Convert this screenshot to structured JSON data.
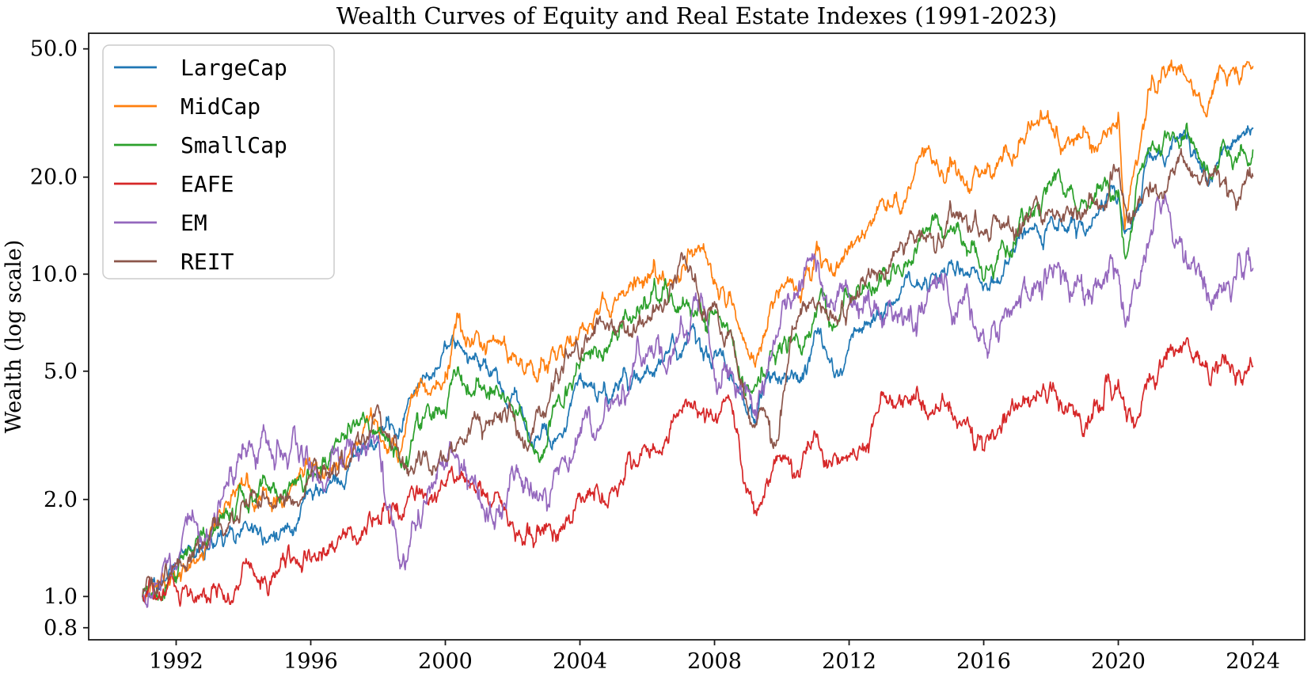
{
  "title": "Wealth Curves of Equity and Real Estate Indexes (1991-2023)",
  "y_axis": {
    "label": "Wealth (log scale)",
    "scale": "log",
    "tick_labels": [
      "50.0",
      "20.0",
      "10.0",
      "5.0",
      "2.0",
      "1.0",
      "0.8"
    ],
    "tick_values": [
      50,
      20,
      10,
      5,
      2,
      1,
      0.8
    ]
  },
  "x_axis": {
    "tick_labels": [
      "1992",
      "1996",
      "2000",
      "2004",
      "2008",
      "2012",
      "2016",
      "2020",
      "2024"
    ],
    "tick_values": [
      1992,
      1996,
      2000,
      2004,
      2008,
      2012,
      2016,
      2020,
      2024
    ]
  },
  "legend": {
    "entries": [
      {
        "label": "LargeCap",
        "color": "#1f77b4"
      },
      {
        "label": "MidCap",
        "color": "#ff7f0e"
      },
      {
        "label": "SmallCap",
        "color": "#2ca02c"
      },
      {
        "label": "EAFE",
        "color": "#d62728"
      },
      {
        "label": "EM",
        "color": "#9467bd"
      },
      {
        "label": "REIT",
        "color": "#8c564b"
      }
    ]
  },
  "chart_data": {
    "type": "line",
    "title": "Wealth Curves of Equity and Real Estate Indexes (1991-2023)",
    "xlabel": "",
    "ylabel": "Wealth (log scale)",
    "x_unit": "year",
    "xlim": [
      1989.4,
      2025.54
    ],
    "ylim": [
      0.734,
      55.9
    ],
    "grid": false,
    "legend_position": "upper left",
    "series": [
      {
        "name": "LargeCap",
        "color": "#1f77b4",
        "points": [
          [
            1991,
            1.0
          ],
          [
            1992,
            1.19
          ],
          [
            1993,
            1.4
          ],
          [
            1994,
            1.49
          ],
          [
            1995,
            1.6
          ],
          [
            1996,
            1.94
          ],
          [
            1997,
            2.38
          ],
          [
            1998,
            3.45
          ],
          [
            1998.7,
            3.3
          ],
          [
            1999,
            4.43
          ],
          [
            2000,
            5.5
          ],
          [
            2000.6,
            5.8
          ],
          [
            2001,
            4.7
          ],
          [
            2002,
            4.27
          ],
          [
            2002.7,
            2.9
          ],
          [
            2003,
            3.2
          ],
          [
            2003.2,
            3.05
          ],
          [
            2004,
            4.56
          ],
          [
            2005,
            4.56
          ],
          [
            2006,
            5.06
          ],
          [
            2007,
            6.16
          ],
          [
            2007.4,
            6.76
          ],
          [
            2008,
            5.87
          ],
          [
            2008.5,
            5.17
          ],
          [
            2009.2,
            3.85
          ],
          [
            2009.6,
            4.7
          ],
          [
            2010.2,
            5.06
          ],
          [
            2010.6,
            4.45
          ],
          [
            2011,
            5.9
          ],
          [
            2011.6,
            5.25
          ],
          [
            2012,
            6.33
          ],
          [
            2013,
            7.46
          ],
          [
            2014,
            9.08
          ],
          [
            2015,
            10.6
          ],
          [
            2016,
            9.5
          ],
          [
            2017,
            11.9
          ],
          [
            2018,
            14.6
          ],
          [
            2019,
            13.3
          ],
          [
            2019.5,
            15.3
          ],
          [
            2020,
            17.4
          ],
          [
            2020.2,
            13.0
          ],
          [
            2021,
            22.5
          ],
          [
            2022,
            26.7
          ],
          [
            2022.75,
            19.4
          ],
          [
            2023,
            22.9
          ],
          [
            2023.5,
            25.2
          ],
          [
            2024,
            28.3
          ]
        ]
      },
      {
        "name": "MidCap",
        "color": "#ff7f0e",
        "points": [
          [
            1991,
            1.0
          ],
          [
            1992,
            1.27
          ],
          [
            1993,
            1.54
          ],
          [
            1994,
            1.98
          ],
          [
            1995,
            1.9
          ],
          [
            1996,
            2.19
          ],
          [
            1997,
            2.64
          ],
          [
            1998,
            3.55
          ],
          [
            1998.7,
            2.93
          ],
          [
            1999,
            4.19
          ],
          [
            2000,
            5.06
          ],
          [
            2000.4,
            6.4
          ],
          [
            2001,
            5.9
          ],
          [
            2001.2,
            4.96
          ],
          [
            2001.7,
            6.33
          ],
          [
            2002,
            6.1
          ],
          [
            2002.7,
            4.79
          ],
          [
            2003,
            5.1
          ],
          [
            2004,
            7.25
          ],
          [
            2005,
            8.05
          ],
          [
            2006,
            9.35
          ],
          [
            2007,
            10.5
          ],
          [
            2007.5,
            11.7
          ],
          [
            2008,
            9.82
          ],
          [
            2008.5,
            8.41
          ],
          [
            2009.2,
            4.95
          ],
          [
            2009.6,
            7.5
          ],
          [
            2010.2,
            9.7
          ],
          [
            2010.6,
            8.4
          ],
          [
            2011,
            11.8
          ],
          [
            2011.6,
            10.4
          ],
          [
            2012,
            12.5
          ],
          [
            2013,
            16.3
          ],
          [
            2014,
            18.8
          ],
          [
            2015,
            21.4
          ],
          [
            2015.3,
            22.0
          ],
          [
            2016,
            18.3
          ],
          [
            2017,
            24.7
          ],
          [
            2018,
            28.7
          ],
          [
            2019,
            23.8
          ],
          [
            2019.5,
            28.5
          ],
          [
            2020,
            31.8
          ],
          [
            2020.2,
            14.0
          ],
          [
            2021,
            37.0
          ],
          [
            2021.7,
            45.5
          ],
          [
            2022,
            42.7
          ],
          [
            2022.65,
            34.5
          ],
          [
            2023,
            40.3
          ],
          [
            2023.5,
            41.8
          ],
          [
            2024,
            46.0
          ]
        ]
      },
      {
        "name": "SmallCap",
        "color": "#2ca02c",
        "points": [
          [
            1991,
            1.0
          ],
          [
            1992,
            1.31
          ],
          [
            1993,
            1.59
          ],
          [
            1994,
            2.13
          ],
          [
            1995,
            2.0
          ],
          [
            1996,
            2.27
          ],
          [
            1997,
            2.8
          ],
          [
            1998,
            3.7
          ],
          [
            1998.7,
            2.82
          ],
          [
            1999,
            3.47
          ],
          [
            2000,
            4.19
          ],
          [
            2000.2,
            4.48
          ],
          [
            2001,
            4.19
          ],
          [
            2002,
            4.15
          ],
          [
            2002.7,
            2.8
          ],
          [
            2003,
            3.15
          ],
          [
            2004,
            5.61
          ],
          [
            2005,
            5.95
          ],
          [
            2006,
            6.97
          ],
          [
            2007,
            8.05
          ],
          [
            2007.4,
            8.14
          ],
          [
            2008,
            7.1
          ],
          [
            2008.5,
            6.25
          ],
          [
            2009.2,
            3.95
          ],
          [
            2009.6,
            5.17
          ],
          [
            2010.2,
            6.46
          ],
          [
            2010.6,
            5.87
          ],
          [
            2011,
            7.8
          ],
          [
            2011.6,
            6.72
          ],
          [
            2012,
            8.41
          ],
          [
            2013,
            9.97
          ],
          [
            2014,
            12.5
          ],
          [
            2015,
            13.5
          ],
          [
            2016,
            11.0
          ],
          [
            2017,
            13.3
          ],
          [
            2018,
            18.9
          ],
          [
            2019,
            16.0
          ],
          [
            2019.5,
            17.4
          ],
          [
            2020,
            18.8
          ],
          [
            2020.2,
            11.4
          ],
          [
            2021,
            25.5
          ],
          [
            2021.4,
            28.0
          ],
          [
            2022,
            25.2
          ],
          [
            2022.75,
            19.7
          ],
          [
            2023,
            21.9
          ],
          [
            2023.5,
            23.0
          ],
          [
            2024,
            24.3
          ]
        ]
      },
      {
        "name": "EAFE",
        "color": "#d62728",
        "points": [
          [
            1991,
            1.0
          ],
          [
            1991.5,
            1.05
          ],
          [
            1992,
            1.07
          ],
          [
            1992.7,
            0.9
          ],
          [
            1993,
            0.95
          ],
          [
            1994,
            1.23
          ],
          [
            1995,
            1.18
          ],
          [
            1996,
            1.3
          ],
          [
            1997,
            1.54
          ],
          [
            1998,
            1.77
          ],
          [
            1998.45,
            1.92
          ],
          [
            1998.7,
            1.6
          ],
          [
            1999,
            1.86
          ],
          [
            2000,
            2.18
          ],
          [
            2000.2,
            2.42
          ],
          [
            2001,
            2.07
          ],
          [
            2002,
            1.82
          ],
          [
            2003,
            1.48
          ],
          [
            2003.2,
            1.38
          ],
          [
            2004,
            1.97
          ],
          [
            2005,
            2.25
          ],
          [
            2006,
            2.96
          ],
          [
            2007,
            4.0
          ],
          [
            2008,
            3.47
          ],
          [
            2008.4,
            3.8
          ],
          [
            2009.2,
            1.7
          ],
          [
            2009.6,
            2.4
          ],
          [
            2010.2,
            2.87
          ],
          [
            2010.45,
            2.48
          ],
          [
            2011,
            3.18
          ],
          [
            2011.6,
            2.95
          ],
          [
            2012,
            2.85
          ],
          [
            2013,
            3.28
          ],
          [
            2014,
            3.78
          ],
          [
            2015,
            3.89
          ],
          [
            2016,
            3.1
          ],
          [
            2017,
            3.89
          ],
          [
            2018,
            4.62
          ],
          [
            2019,
            3.67
          ],
          [
            2019.5,
            4.25
          ],
          [
            2020,
            4.62
          ],
          [
            2020.25,
            3.45
          ],
          [
            2021,
            5.0
          ],
          [
            2022,
            5.67
          ],
          [
            2022.75,
            4.17
          ],
          [
            2023,
            4.88
          ],
          [
            2023.5,
            5.1
          ],
          [
            2024,
            5.62
          ]
        ]
      },
      {
        "name": "EM",
        "color": "#9467bd",
        "points": [
          [
            1991,
            1.0
          ],
          [
            1992,
            1.35
          ],
          [
            1992.45,
            1.93
          ],
          [
            1992.8,
            1.6
          ],
          [
            1993,
            1.7
          ],
          [
            1994,
            3.1
          ],
          [
            1994.4,
            2.66
          ],
          [
            1994.75,
            3.17
          ],
          [
            1995,
            2.93
          ],
          [
            1995.2,
            2.3
          ],
          [
            1995.5,
            2.6
          ],
          [
            1996,
            2.25
          ],
          [
            1997,
            2.74
          ],
          [
            1998,
            3.2
          ],
          [
            1998.7,
            1.35
          ],
          [
            1999,
            1.76
          ],
          [
            2000.1,
            2.75
          ],
          [
            2001,
            2.09
          ],
          [
            2001.25,
            1.76
          ],
          [
            2002.3,
            2.18
          ],
          [
            2003,
            1.78
          ],
          [
            2004,
            3.07
          ],
          [
            2004.25,
            3.16
          ],
          [
            2004.45,
            2.72
          ],
          [
            2005,
            3.55
          ],
          [
            2006,
            5.03
          ],
          [
            2006.3,
            5.71
          ],
          [
            2006.5,
            4.56
          ],
          [
            2007,
            6.33
          ],
          [
            2007.66,
            9.2
          ],
          [
            2008,
            6.97
          ],
          [
            2008.5,
            4.79
          ],
          [
            2009.2,
            3.27
          ],
          [
            2009.66,
            5.87
          ],
          [
            2010.2,
            7.02
          ],
          [
            2011,
            8.9
          ],
          [
            2011.6,
            6.85
          ],
          [
            2012,
            8.18
          ],
          [
            2013,
            8.35
          ],
          [
            2014,
            8.3
          ],
          [
            2014.6,
            9.35
          ],
          [
            2015,
            9.08
          ],
          [
            2016.1,
            5.98
          ],
          [
            2017,
            7.96
          ],
          [
            2018,
            10.9
          ],
          [
            2019,
            8.6
          ],
          [
            2019.5,
            9.92
          ],
          [
            2020,
            10.45
          ],
          [
            2020.2,
            7.26
          ],
          [
            2021.15,
            13.5
          ],
          [
            2021.5,
            12.3
          ],
          [
            2022,
            11.3
          ],
          [
            2022.75,
            8.6
          ],
          [
            2023,
            9.97
          ],
          [
            2023.5,
            9.8
          ],
          [
            2024,
            10.6
          ]
        ]
      },
      {
        "name": "REIT",
        "color": "#8c564b",
        "points": [
          [
            1991,
            1.0
          ],
          [
            1992,
            1.22
          ],
          [
            1993,
            1.44
          ],
          [
            1994,
            1.97
          ],
          [
            1995,
            1.88
          ],
          [
            1996,
            2.16
          ],
          [
            1997,
            2.49
          ],
          [
            1998,
            3.45
          ],
          [
            1998.8,
            2.66
          ],
          [
            1999,
            2.74
          ],
          [
            2000,
            2.8
          ],
          [
            2001,
            3.18
          ],
          [
            2002,
            3.74
          ],
          [
            2002.5,
            3.35
          ],
          [
            2003,
            3.95
          ],
          [
            2004,
            5.82
          ],
          [
            2005,
            6.97
          ],
          [
            2006,
            8.05
          ],
          [
            2007.1,
            11.4
          ],
          [
            2008,
            8.14
          ],
          [
            2008.5,
            6.55
          ],
          [
            2009.2,
            3.6
          ],
          [
            2009.5,
            4.4
          ],
          [
            2009.8,
            3.02
          ],
          [
            2010.3,
            6.9
          ],
          [
            2011,
            8.65
          ],
          [
            2011.6,
            8.14
          ],
          [
            2012,
            9.66
          ],
          [
            2013,
            11.4
          ],
          [
            2014,
            13.0
          ],
          [
            2015,
            14.3
          ],
          [
            2016,
            13.8
          ],
          [
            2017,
            15.3
          ],
          [
            2018,
            16.0
          ],
          [
            2019,
            16.7
          ],
          [
            2019.5,
            18.0
          ],
          [
            2020,
            20.3
          ],
          [
            2020.35,
            14.6
          ],
          [
            2021,
            19.5
          ],
          [
            2022,
            22.5
          ],
          [
            2022.75,
            17.3
          ],
          [
            2023,
            18.9
          ],
          [
            2023.5,
            17.9
          ],
          [
            2024,
            21.5
          ]
        ]
      }
    ]
  }
}
